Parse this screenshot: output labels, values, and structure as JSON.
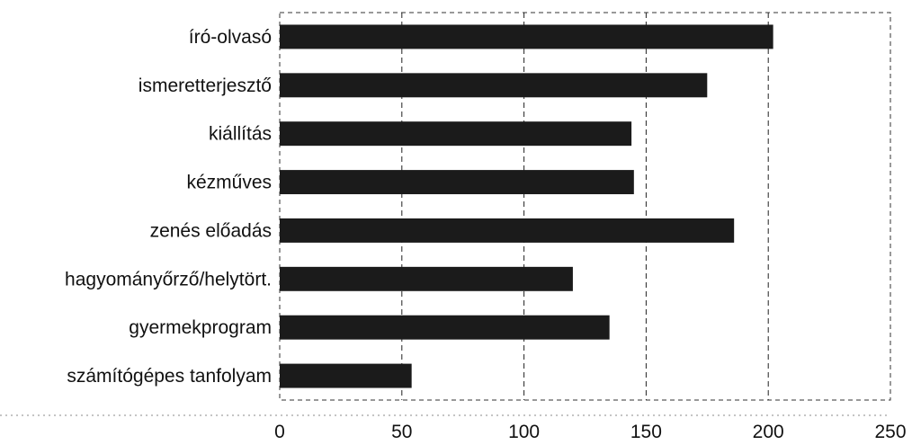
{
  "chart_data": {
    "type": "bar",
    "orientation": "horizontal",
    "title": "",
    "xlabel": "",
    "ylabel": "",
    "categories": [
      "író-olvasó",
      "ismeretterjesztő",
      "kiállítás",
      "kézműves",
      "zenés előadás",
      "hagyományőrző/helytört.",
      "gyermekprogram",
      "számítógépes tanfolyam"
    ],
    "values": [
      202,
      175,
      144,
      145,
      186,
      120,
      135,
      54
    ],
    "xlim": [
      0,
      250
    ],
    "xticks": [
      "0",
      "50",
      "100",
      "150",
      "200",
      "250"
    ],
    "grid": true,
    "legend": "none",
    "bar_color": "#1b1b1b"
  }
}
